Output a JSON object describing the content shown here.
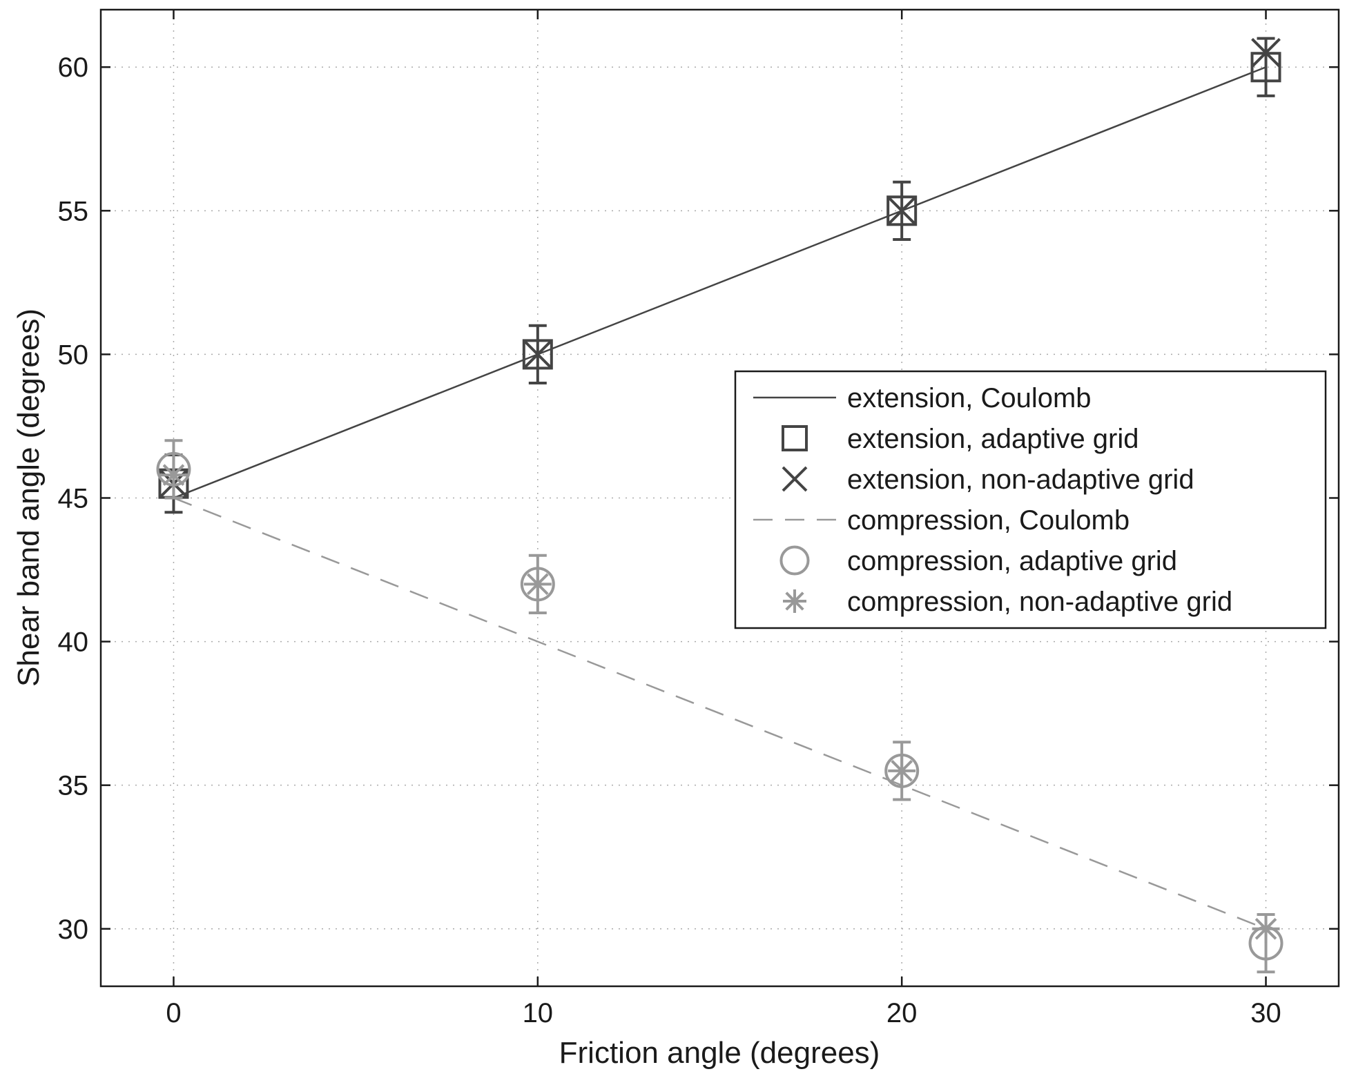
{
  "chart_data": {
    "type": "scatter",
    "title": "",
    "xlabel": "Friction angle (degrees)",
    "ylabel": "Shear band angle (degrees)",
    "xlim": [
      -2,
      32
    ],
    "ylim": [
      28,
      62
    ],
    "xticks": [
      0,
      10,
      20,
      30
    ],
    "yticks": [
      30,
      35,
      40,
      45,
      50,
      55,
      60
    ],
    "grid": true,
    "legend_position": "right",
    "colors": {
      "dark": "#444444",
      "light": "#999999",
      "axis": "#1a1a1a"
    },
    "series": [
      {
        "name": "extension, Coulomb",
        "kind": "line",
        "style": "solid",
        "color": "#444444",
        "x": [
          0,
          30
        ],
        "y": [
          45,
          60
        ]
      },
      {
        "name": "extension, adaptive grid",
        "kind": "marker",
        "marker": "square",
        "color": "#444444",
        "x": [
          0,
          10,
          20,
          30
        ],
        "y": [
          45.5,
          50,
          55,
          60
        ],
        "err": [
          1,
          1,
          1,
          1
        ]
      },
      {
        "name": "extension, non-adaptive grid",
        "kind": "marker",
        "marker": "x",
        "color": "#444444",
        "x": [
          0,
          10,
          20,
          30
        ],
        "y": [
          45.5,
          50,
          55,
          60.5
        ],
        "err": [
          0,
          0,
          0,
          0
        ]
      },
      {
        "name": "compression, Coulomb",
        "kind": "line",
        "style": "dashed",
        "color": "#999999",
        "x": [
          0,
          30
        ],
        "y": [
          45,
          30
        ]
      },
      {
        "name": "compression, adaptive grid",
        "kind": "marker",
        "marker": "circle",
        "color": "#999999",
        "x": [
          0,
          10,
          20,
          30
        ],
        "y": [
          46,
          42,
          35.5,
          29.5
        ],
        "err": [
          1,
          1,
          1,
          1
        ]
      },
      {
        "name": "compression, non-adaptive grid",
        "kind": "marker",
        "marker": "asterisk",
        "color": "#999999",
        "x": [
          0,
          10,
          20,
          30
        ],
        "y": [
          45.8,
          42,
          35.5,
          30
        ],
        "err": [
          0,
          0,
          0,
          0
        ]
      }
    ]
  }
}
